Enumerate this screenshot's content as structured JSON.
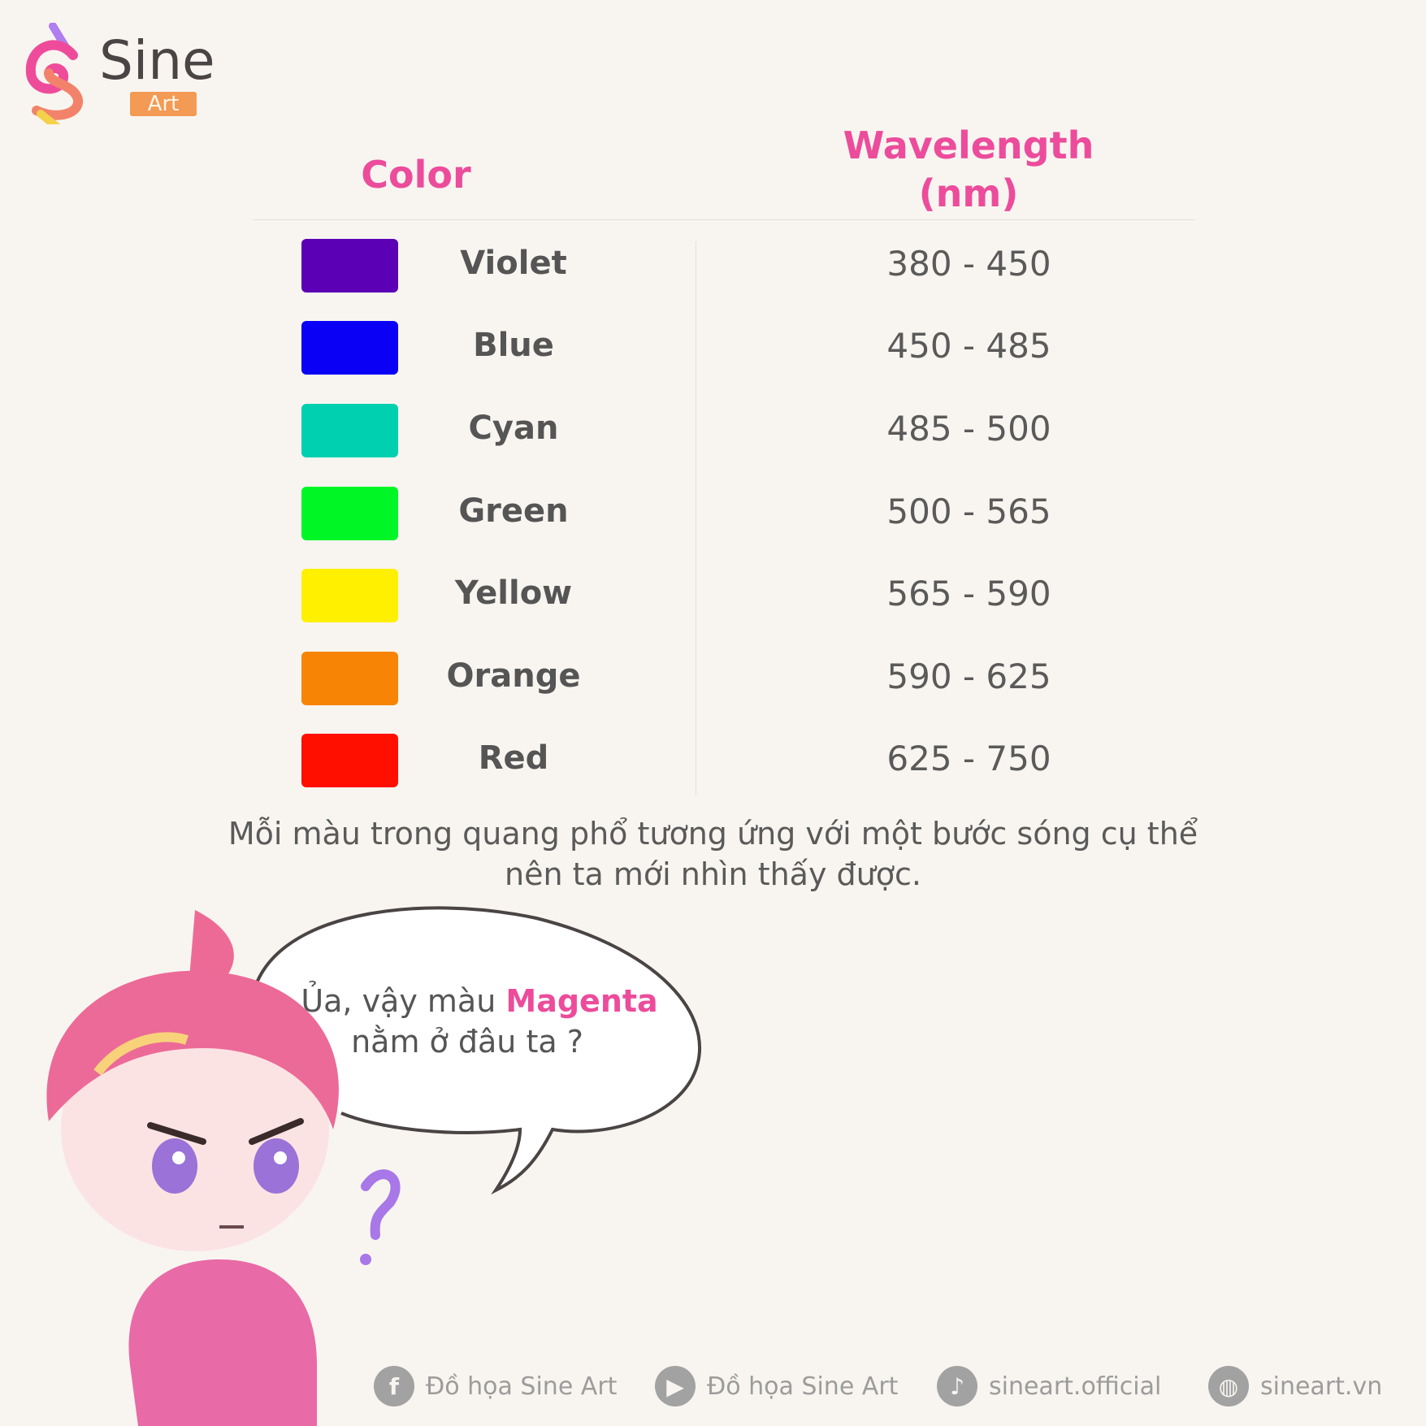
{
  "logo": {
    "name": "Sine",
    "sub": "Art"
  },
  "table": {
    "header_color": "Color",
    "header_wavelength_line1": "Wavelength",
    "header_wavelength_line2": "(nm)",
    "rows": [
      {
        "name": "Violet",
        "range": "380 - 450",
        "swatch": "#5b00b5"
      },
      {
        "name": "Blue",
        "range": "450 - 485",
        "swatch": "#0a00f5"
      },
      {
        "name": "Cyan",
        "range": "485 - 500",
        "swatch": "#00d0b0"
      },
      {
        "name": "Green",
        "range": "500 - 565",
        "swatch": "#00f726"
      },
      {
        "name": "Yellow",
        "range": "565 - 590",
        "swatch": "#fff000"
      },
      {
        "name": "Orange",
        "range": "590 - 625",
        "swatch": "#f88406"
      },
      {
        "name": "Red",
        "range": "625 - 750",
        "swatch": "#ff0f00"
      }
    ]
  },
  "caption": {
    "line1": "Mỗi màu trong quang phổ tương ứng với một bước sóng cụ thể",
    "line2": "nên ta mới nhìn thấy được."
  },
  "bubble": {
    "prefix": "Ủa, vậy màu ",
    "highlight": "Magenta",
    "line2": "nằm ở đâu ta ?"
  },
  "footer": [
    {
      "icon": "facebook-icon",
      "label": "Đồ họa Sine Art"
    },
    {
      "icon": "youtube-icon",
      "label": "Đồ họa Sine Art"
    },
    {
      "icon": "tiktok-icon",
      "label": "sineart.official"
    },
    {
      "icon": "globe-icon",
      "label": "sineart.vn"
    }
  ],
  "colors": {
    "accent": "#ec4c9b",
    "background": "#f8f5f0"
  }
}
